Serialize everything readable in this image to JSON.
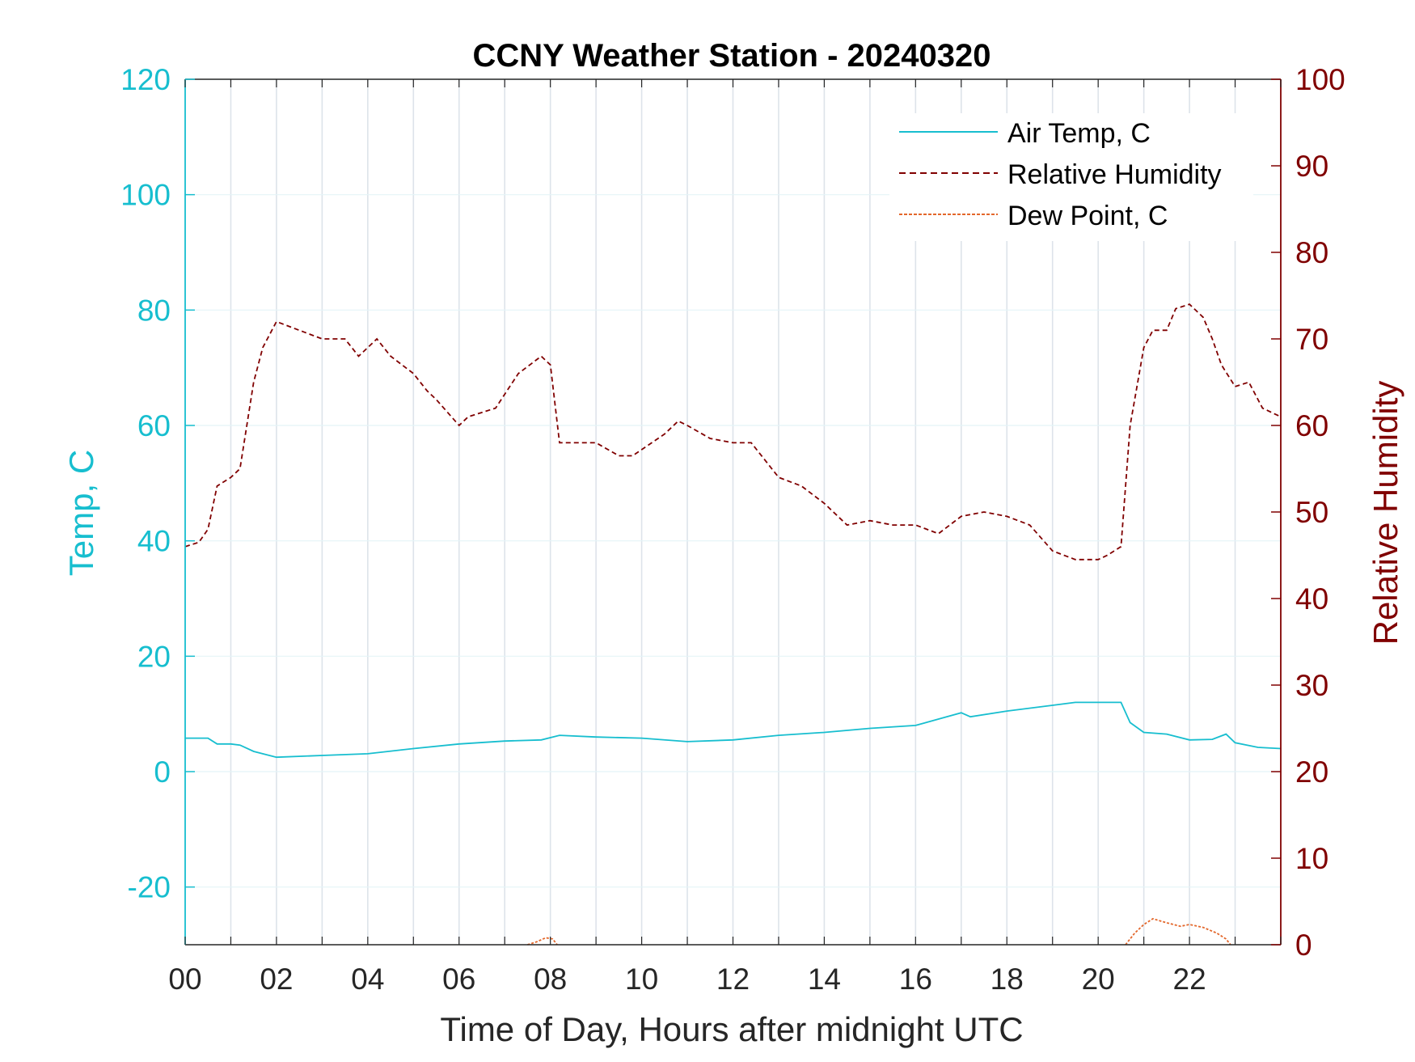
{
  "colors": {
    "temp": "#17becf",
    "humidity": "#800000",
    "dewpoint": "#e3672b",
    "grid": "#dde3ea",
    "axis_dark": "#262626"
  },
  "chart_data": {
    "type": "line",
    "title": "CCNY Weather Station - 20240320",
    "xlabel": "Time of Day, Hours after midnight UTC",
    "ylabel_left": "Temp, C",
    "ylabel_right": "Relative Humidity",
    "xlim": [
      0,
      24
    ],
    "ylim_left": [
      -30,
      120
    ],
    "ylim_right": [
      0,
      100
    ],
    "x_ticks": [
      0,
      2,
      4,
      6,
      8,
      10,
      12,
      14,
      16,
      18,
      20,
      22
    ],
    "x_tick_labels": [
      "00",
      "02",
      "04",
      "06",
      "08",
      "10",
      "12",
      "14",
      "16",
      "18",
      "20",
      "22"
    ],
    "y_left_ticks": [
      -20,
      0,
      20,
      40,
      60,
      80,
      100,
      120
    ],
    "y_left_tick_labels": [
      "-20",
      "0",
      "20",
      "40",
      "60",
      "80",
      "100",
      "120"
    ],
    "y_right_ticks": [
      0,
      10,
      20,
      30,
      40,
      50,
      60,
      70,
      80,
      90,
      100
    ],
    "y_right_tick_labels": [
      "0",
      "10",
      "20",
      "30",
      "40",
      "50",
      "60",
      "70",
      "80",
      "90",
      "100"
    ],
    "grid": "vertical-hourly",
    "legend_position": "top-right",
    "series": [
      {
        "name": "Air Temp, C",
        "axis": "left",
        "style": "solid",
        "x": [
          0,
          0.5,
          0.7,
          1.0,
          1.2,
          1.5,
          2.0,
          3.0,
          4.0,
          5.0,
          6.0,
          7.0,
          7.8,
          8.2,
          9.0,
          10.0,
          11.0,
          12.0,
          13.0,
          14.0,
          15.0,
          16.0,
          17.0,
          17.2,
          18.0,
          19.0,
          19.5,
          20.0,
          20.5,
          20.7,
          21.0,
          21.5,
          22.0,
          22.5,
          22.8,
          23.0,
          23.5,
          24.0
        ],
        "y": [
          5.8,
          5.8,
          4.8,
          4.8,
          4.6,
          3.5,
          2.5,
          2.8,
          3.1,
          4.0,
          4.8,
          5.3,
          5.5,
          6.3,
          6.0,
          5.8,
          5.2,
          5.5,
          6.3,
          6.8,
          7.5,
          8.0,
          10.2,
          9.5,
          10.5,
          11.5,
          12.0,
          12.0,
          12.0,
          8.5,
          6.8,
          6.5,
          5.5,
          5.6,
          6.5,
          5.0,
          4.2,
          4.0
        ]
      },
      {
        "name": "Relative Humidity",
        "axis": "right",
        "style": "dashed",
        "x": [
          0,
          0.3,
          0.5,
          0.7,
          1.0,
          1.2,
          1.5,
          1.7,
          2.0,
          2.5,
          3.0,
          3.5,
          3.8,
          4.2,
          4.5,
          5.0,
          5.3,
          5.5,
          6.0,
          6.2,
          6.8,
          7.3,
          7.8,
          8.0,
          8.2,
          8.5,
          9.0,
          9.5,
          9.8,
          10.5,
          10.8,
          11.0,
          11.5,
          12.0,
          12.4,
          13.0,
          13.5,
          14.0,
          14.5,
          15.0,
          15.5,
          16.0,
          16.5,
          17.0,
          17.5,
          18.0,
          18.5,
          19.0,
          19.5,
          20.0,
          20.2,
          20.5,
          20.7,
          21.0,
          21.2,
          21.5,
          21.7,
          22.0,
          22.3,
          22.5,
          22.7,
          23.0,
          23.3,
          23.6,
          24.0
        ],
        "y": [
          46,
          46.5,
          48,
          53,
          54,
          55,
          65,
          69,
          72,
          71,
          70,
          70,
          68,
          70,
          68,
          66,
          64,
          63,
          60,
          61,
          62,
          66,
          68,
          67,
          58,
          58,
          58,
          56.5,
          56.5,
          59,
          60.5,
          60,
          58.5,
          58,
          58,
          54,
          53,
          51,
          48.5,
          49,
          48.5,
          48.5,
          47.5,
          49.5,
          50,
          49.5,
          48.5,
          45.5,
          44.5,
          44.5,
          45,
          46,
          60,
          69,
          71,
          71,
          73.5,
          74,
          72.5,
          70,
          67,
          64.5,
          65,
          62,
          61
        ]
      },
      {
        "name": "Dew Point, C",
        "axis": "left",
        "style": "dashed",
        "segments": [
          {
            "x": [
              7.5,
              7.7,
              7.9,
              8.05,
              8.15
            ],
            "y": [
              -30,
              -29.5,
              -28.8,
              -29.0,
              -30
            ]
          },
          {
            "x": [
              20.6,
              20.8,
              21.0,
              21.2,
              21.5,
              21.8,
              22.0,
              22.3,
              22.6,
              22.8,
              22.9
            ],
            "y": [
              -30,
              -28.0,
              -26.5,
              -25.5,
              -26.2,
              -26.8,
              -26.5,
              -27.0,
              -28.0,
              -29.0,
              -30
            ]
          }
        ]
      }
    ]
  }
}
